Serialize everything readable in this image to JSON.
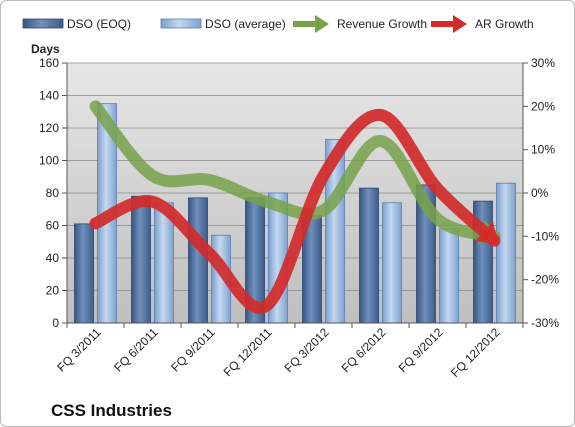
{
  "chart_data": {
    "type": "bar",
    "title": "CSS Industries",
    "ylabel": "Days",
    "categories": [
      "FQ 3/2011",
      "FQ 6/2011",
      "FQ 9/2011",
      "FQ 12/2011",
      "FQ 3/2012",
      "FQ 6/2012",
      "FQ 9/2012",
      "FQ 12/2012"
    ],
    "ylim": [
      0,
      160
    ],
    "y_ticks": [
      "0",
      "20",
      "40",
      "60",
      "80",
      "100",
      "120",
      "140",
      "160"
    ],
    "y2lim": [
      -30,
      30
    ],
    "y2_ticks": [
      "-30%",
      "-20%",
      "-10%",
      "0%",
      "10%",
      "20%",
      "30%"
    ],
    "bar_series": [
      {
        "name": "DSO (EOQ)",
        "values": [
          61,
          78,
          77,
          77,
          66,
          83,
          85,
          75
        ],
        "color": "#4f6f9f"
      },
      {
        "name": "DSO (average)",
        "values": [
          135,
          74,
          54,
          80,
          113,
          74,
          58,
          86
        ],
        "color": "#8fb2dc"
      }
    ],
    "line_series": [
      {
        "name": "Revenue Growth",
        "axis": "right",
        "values": [
          20,
          4,
          3,
          -2,
          -4,
          12,
          -6,
          -10
        ],
        "color": "#77a24a"
      },
      {
        "name": "AR Growth",
        "axis": "right",
        "values": [
          -7,
          -2,
          -14,
          -26,
          4,
          18,
          1,
          -11
        ],
        "color": "#d32a2a"
      }
    ],
    "grid": true,
    "legend_position": "top"
  }
}
